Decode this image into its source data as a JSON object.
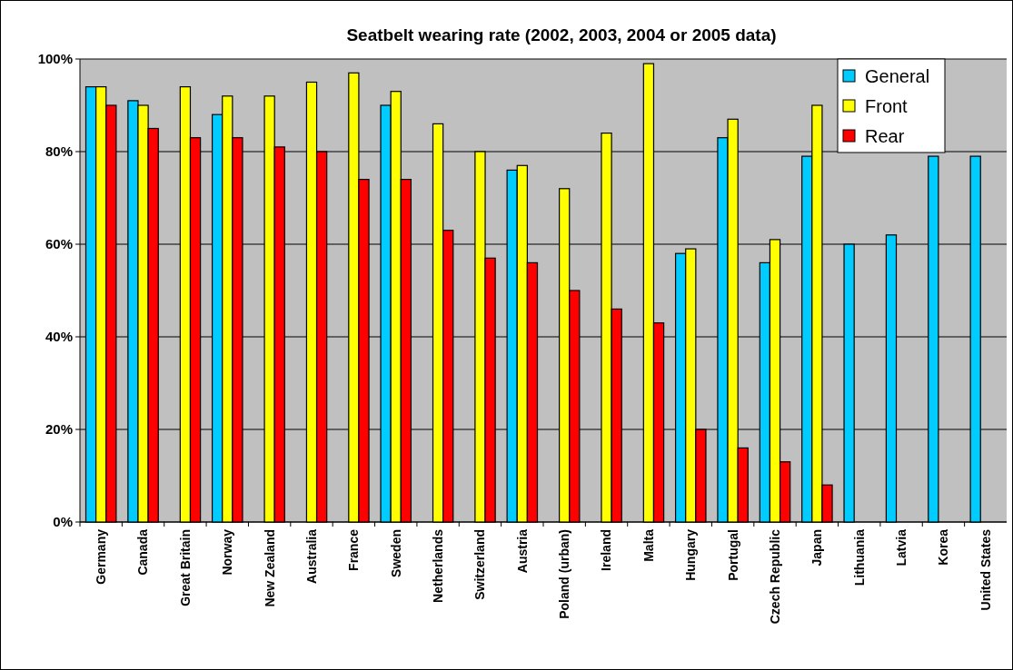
{
  "chart_data": {
    "type": "bar",
    "title": "Seatbelt wearing rate (2002, 2003, 2004 or 2005 data)",
    "categories": [
      "Germany",
      "Canada",
      "Great Britain",
      "Norway",
      "New Zealand",
      "Australia",
      "France",
      "Sweden",
      "Netherlands",
      "Switzerland",
      "Austria",
      "Poland (urban)",
      "Ireland",
      "Malta",
      "Hungary",
      "Portugal",
      "Czech Republic",
      "Japan",
      "Lithuania",
      "Latvia",
      "Korea",
      "United States"
    ],
    "series": [
      {
        "name": "General",
        "color": "#00ccff",
        "values": [
          94,
          91,
          null,
          88,
          null,
          null,
          null,
          90,
          null,
          null,
          76,
          null,
          null,
          null,
          58,
          83,
          56,
          79,
          60,
          62,
          79,
          79
        ]
      },
      {
        "name": "Front",
        "color": "#ffff00",
        "values": [
          94,
          90,
          94,
          92,
          92,
          95,
          97,
          93,
          86,
          80,
          77,
          72,
          84,
          99,
          59,
          87,
          61,
          90,
          null,
          null,
          null,
          null
        ]
      },
      {
        "name": "Rear",
        "color": "#ff0000",
        "values": [
          90,
          85,
          83,
          83,
          81,
          80,
          74,
          74,
          63,
          57,
          56,
          50,
          46,
          43,
          20,
          16,
          13,
          8,
          null,
          null,
          null,
          null
        ]
      }
    ],
    "ylim": [
      0,
      100
    ],
    "yticks": [
      {
        "value": 0,
        "label": "0%"
      },
      {
        "value": 20,
        "label": "20%"
      },
      {
        "value": 40,
        "label": "40%"
      },
      {
        "value": 60,
        "label": "60%"
      },
      {
        "value": 80,
        "label": "80%"
      },
      {
        "value": 100,
        "label": "100%"
      }
    ],
    "grid": "y",
    "legend": "top right"
  }
}
